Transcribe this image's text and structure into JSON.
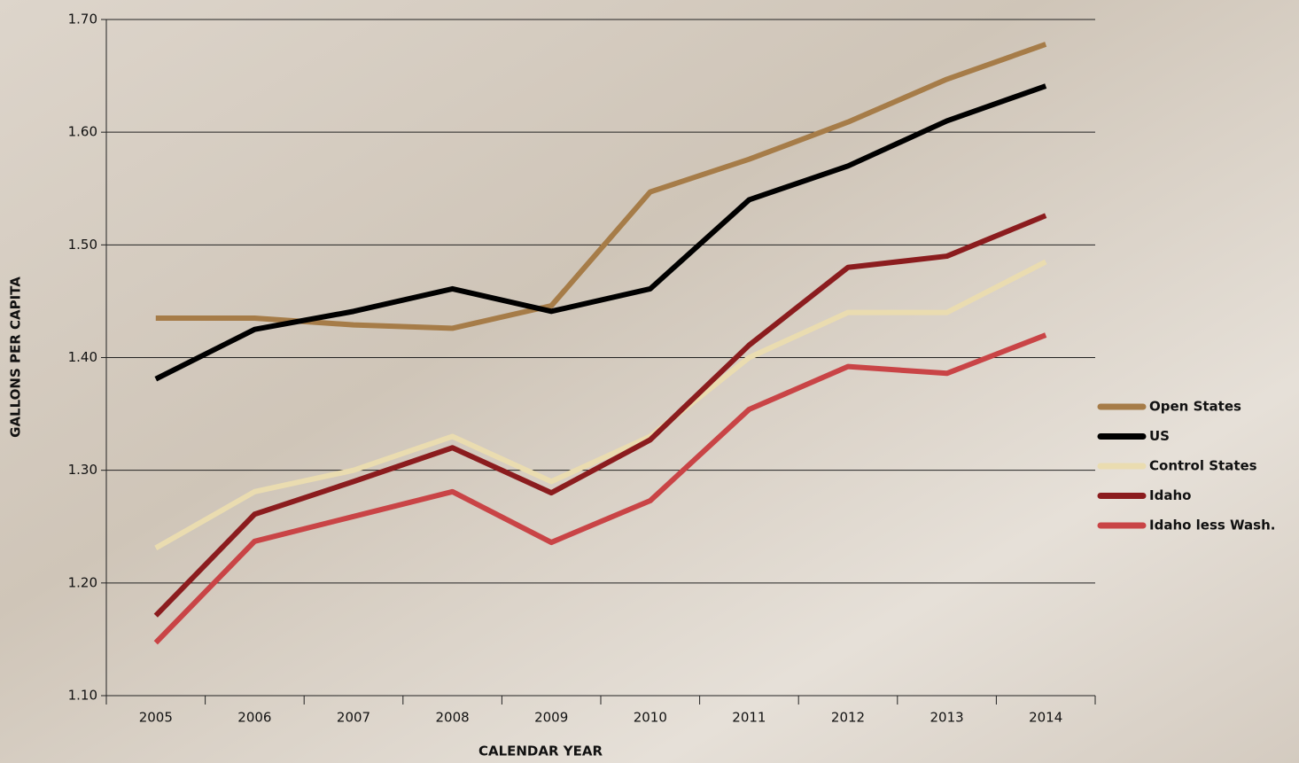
{
  "chart_data": {
    "type": "line",
    "x_label": "CALENDAR YEAR",
    "y_label": "GALLONS PER CAPITA",
    "categories": [
      "2005",
      "2006",
      "2007",
      "2008",
      "2009",
      "2010",
      "2011",
      "2012",
      "2013",
      "2014"
    ],
    "series": [
      {
        "name": "Open States",
        "color": "#a67c48",
        "values": [
          1.435,
          1.435,
          1.429,
          1.426,
          1.446,
          1.547,
          1.576,
          1.609,
          1.647,
          1.678
        ]
      },
      {
        "name": "US",
        "color": "#000000",
        "values": [
          1.381,
          1.425,
          1.441,
          1.461,
          1.441,
          1.461,
          1.54,
          1.57,
          1.61,
          1.641
        ]
      },
      {
        "name": "Control States",
        "color": "#eadcb0",
        "values": [
          1.231,
          1.281,
          1.3,
          1.33,
          1.29,
          1.33,
          1.4,
          1.44,
          1.44,
          1.485
        ]
      },
      {
        "name": "Idaho",
        "color": "#8b1c1e",
        "values": [
          1.171,
          1.261,
          1.29,
          1.32,
          1.28,
          1.327,
          1.411,
          1.48,
          1.49,
          1.526
        ]
      },
      {
        "name": "Idaho less Wash.",
        "color": "#c94446",
        "values": [
          1.147,
          1.237,
          1.259,
          1.281,
          1.236,
          1.273,
          1.354,
          1.392,
          1.386,
          1.42
        ]
      }
    ],
    "ylim": [
      1.1,
      1.7
    ],
    "yticks": [
      {
        "value": 1.1,
        "label": "1.10"
      },
      {
        "value": 1.2,
        "label": "1.20"
      },
      {
        "value": 1.3,
        "label": "1.30"
      },
      {
        "value": 1.4,
        "label": "1.40"
      },
      {
        "value": 1.5,
        "label": "1.50"
      },
      {
        "value": 1.6,
        "label": "1.60"
      },
      {
        "value": 1.7,
        "label": "1.70"
      }
    ],
    "grid": true,
    "legend": "right"
  }
}
